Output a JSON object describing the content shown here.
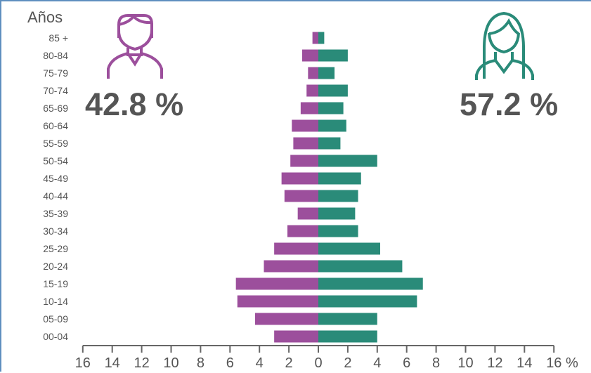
{
  "colors": {
    "male": "#9c4f9c",
    "female": "#2a8b79",
    "axis": "#666666",
    "text": "#555555",
    "frame": "#5f8fbf"
  },
  "icons": {
    "male": "man-outline-icon",
    "female": "woman-outline-icon"
  },
  "labels": {
    "age_title": "Años",
    "male_percent": "42.8 %",
    "female_percent": "57.2 %"
  },
  "chart_data": {
    "type": "bar",
    "orientation": "horizontal",
    "subtype": "population-pyramid",
    "xlabel": "",
    "ylabel": "Años",
    "xlim": [
      -16,
      16
    ],
    "x_tick_labels": [
      "16",
      "14",
      "12",
      "10",
      "8",
      "6",
      "4",
      "2",
      "0",
      "2",
      "4",
      "6",
      "8",
      "10",
      "12",
      "14",
      "16 %"
    ],
    "categories": [
      "85 +",
      "80-84",
      "75-79",
      "70-74",
      "65-69",
      "60-64",
      "55-59",
      "50-54",
      "45-49",
      "40-44",
      "35-39",
      "30-34",
      "25-29",
      "20-24",
      "15-19",
      "10-14",
      "05-09",
      "00-04"
    ],
    "series": [
      {
        "name": "42.8 %",
        "side": "left",
        "values": [
          0.4,
          1.1,
          0.7,
          0.8,
          1.2,
          1.8,
          1.7,
          1.9,
          2.5,
          2.3,
          1.4,
          2.1,
          3.0,
          3.7,
          5.6,
          5.5,
          4.3,
          3.0
        ]
      },
      {
        "name": "57.2 %",
        "side": "right",
        "values": [
          0.4,
          2.0,
          1.1,
          2.0,
          1.7,
          1.9,
          1.5,
          4.0,
          2.9,
          2.7,
          2.5,
          2.7,
          4.2,
          5.7,
          7.1,
          6.7,
          4.0,
          4.0
        ]
      }
    ]
  }
}
